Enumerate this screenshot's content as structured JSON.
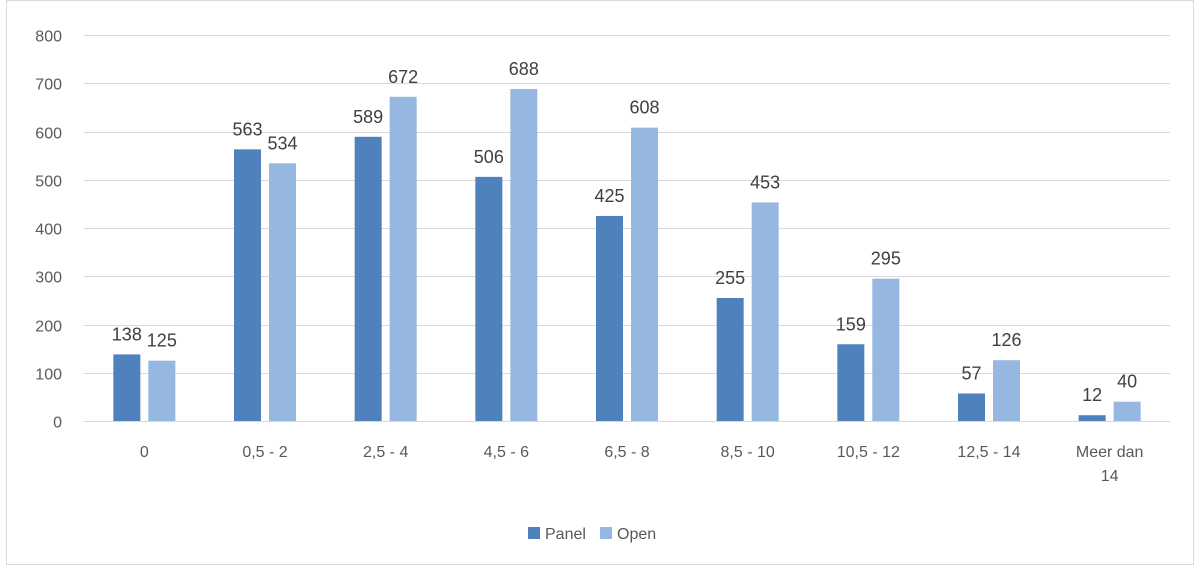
{
  "chart_data": {
    "type": "bar",
    "categories": [
      "0",
      "0,5 - 2",
      "2,5 - 4",
      "4,5 - 6",
      "6,5 - 8",
      "8,5 - 10",
      "10,5 - 12",
      "12,5 - 14",
      "Meer dan 14"
    ],
    "category_lines": [
      [
        "0"
      ],
      [
        "0,5 - 2"
      ],
      [
        "2,5 - 4"
      ],
      [
        "4,5 - 6"
      ],
      [
        "6,5 - 8"
      ],
      [
        "8,5 - 10"
      ],
      [
        "10,5 - 12"
      ],
      [
        "12,5 - 14"
      ],
      [
        "Meer dan",
        "14"
      ]
    ],
    "series": [
      {
        "name": "Panel",
        "color": "#4f81bd",
        "values": [
          138,
          563,
          589,
          506,
          425,
          255,
          159,
          57,
          12
        ]
      },
      {
        "name": "Open",
        "color": "#95b7e0",
        "values": [
          125,
          534,
          672,
          688,
          608,
          453,
          295,
          126,
          40
        ]
      }
    ],
    "title": "",
    "xlabel": "",
    "ylabel": "",
    "ylim": [
      0,
      800
    ],
    "yticks": [
      0,
      100,
      200,
      300,
      400,
      500,
      600,
      700,
      800
    ],
    "grid": true,
    "legend_position": "bottom",
    "data_labels": true,
    "gridline_color": "#d9d9d9"
  }
}
